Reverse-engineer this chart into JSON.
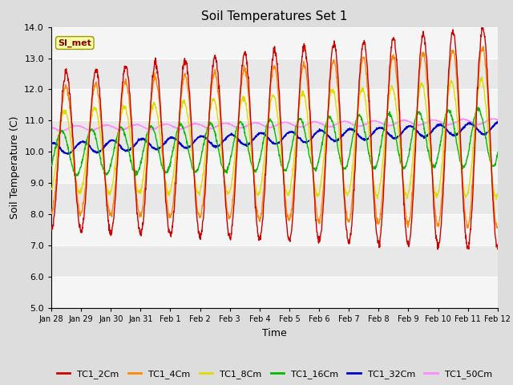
{
  "title": "Soil Temperatures Set 1",
  "xlabel": "Time",
  "ylabel": "Soil Temperature (C)",
  "ylim": [
    5.0,
    14.0
  ],
  "yticks": [
    5.0,
    6.0,
    7.0,
    8.0,
    9.0,
    10.0,
    11.0,
    12.0,
    13.0,
    14.0
  ],
  "series_colors": {
    "TC1_2Cm": "#cc0000",
    "TC1_4Cm": "#ff8800",
    "TC1_8Cm": "#dddd00",
    "TC1_16Cm": "#00bb00",
    "TC1_32Cm": "#0000cc",
    "TC1_50Cm": "#ff88ff"
  },
  "annotation_text": "SI_met",
  "annotation_box_color": "#ffffaa",
  "annotation_box_edge": "#999900",
  "background_color": "#dddddd",
  "plot_bg_light": "#f5f5f5",
  "plot_bg_dark": "#e8e8e8",
  "grid_color": "#ffffff",
  "title_fontsize": 11,
  "axis_fontsize": 9,
  "tick_fontsize": 8,
  "legend_fontsize": 8,
  "time_start": 28.0,
  "time_end": 43.0,
  "xtick_days": [
    28,
    29,
    30,
    31,
    32,
    33,
    34,
    35,
    36,
    37,
    38,
    39,
    40,
    41,
    42,
    43
  ],
  "xtick_labels": [
    "Jan 28",
    "Jan 29",
    "Jan 30",
    "Jan 31",
    "Feb 1",
    "Feb 2",
    "Feb 3",
    "Feb 4",
    "Feb 5",
    "Feb 6",
    "Feb 7",
    "Feb 8",
    "Feb 9",
    "Feb 10",
    "Feb 11",
    "Feb 12"
  ]
}
